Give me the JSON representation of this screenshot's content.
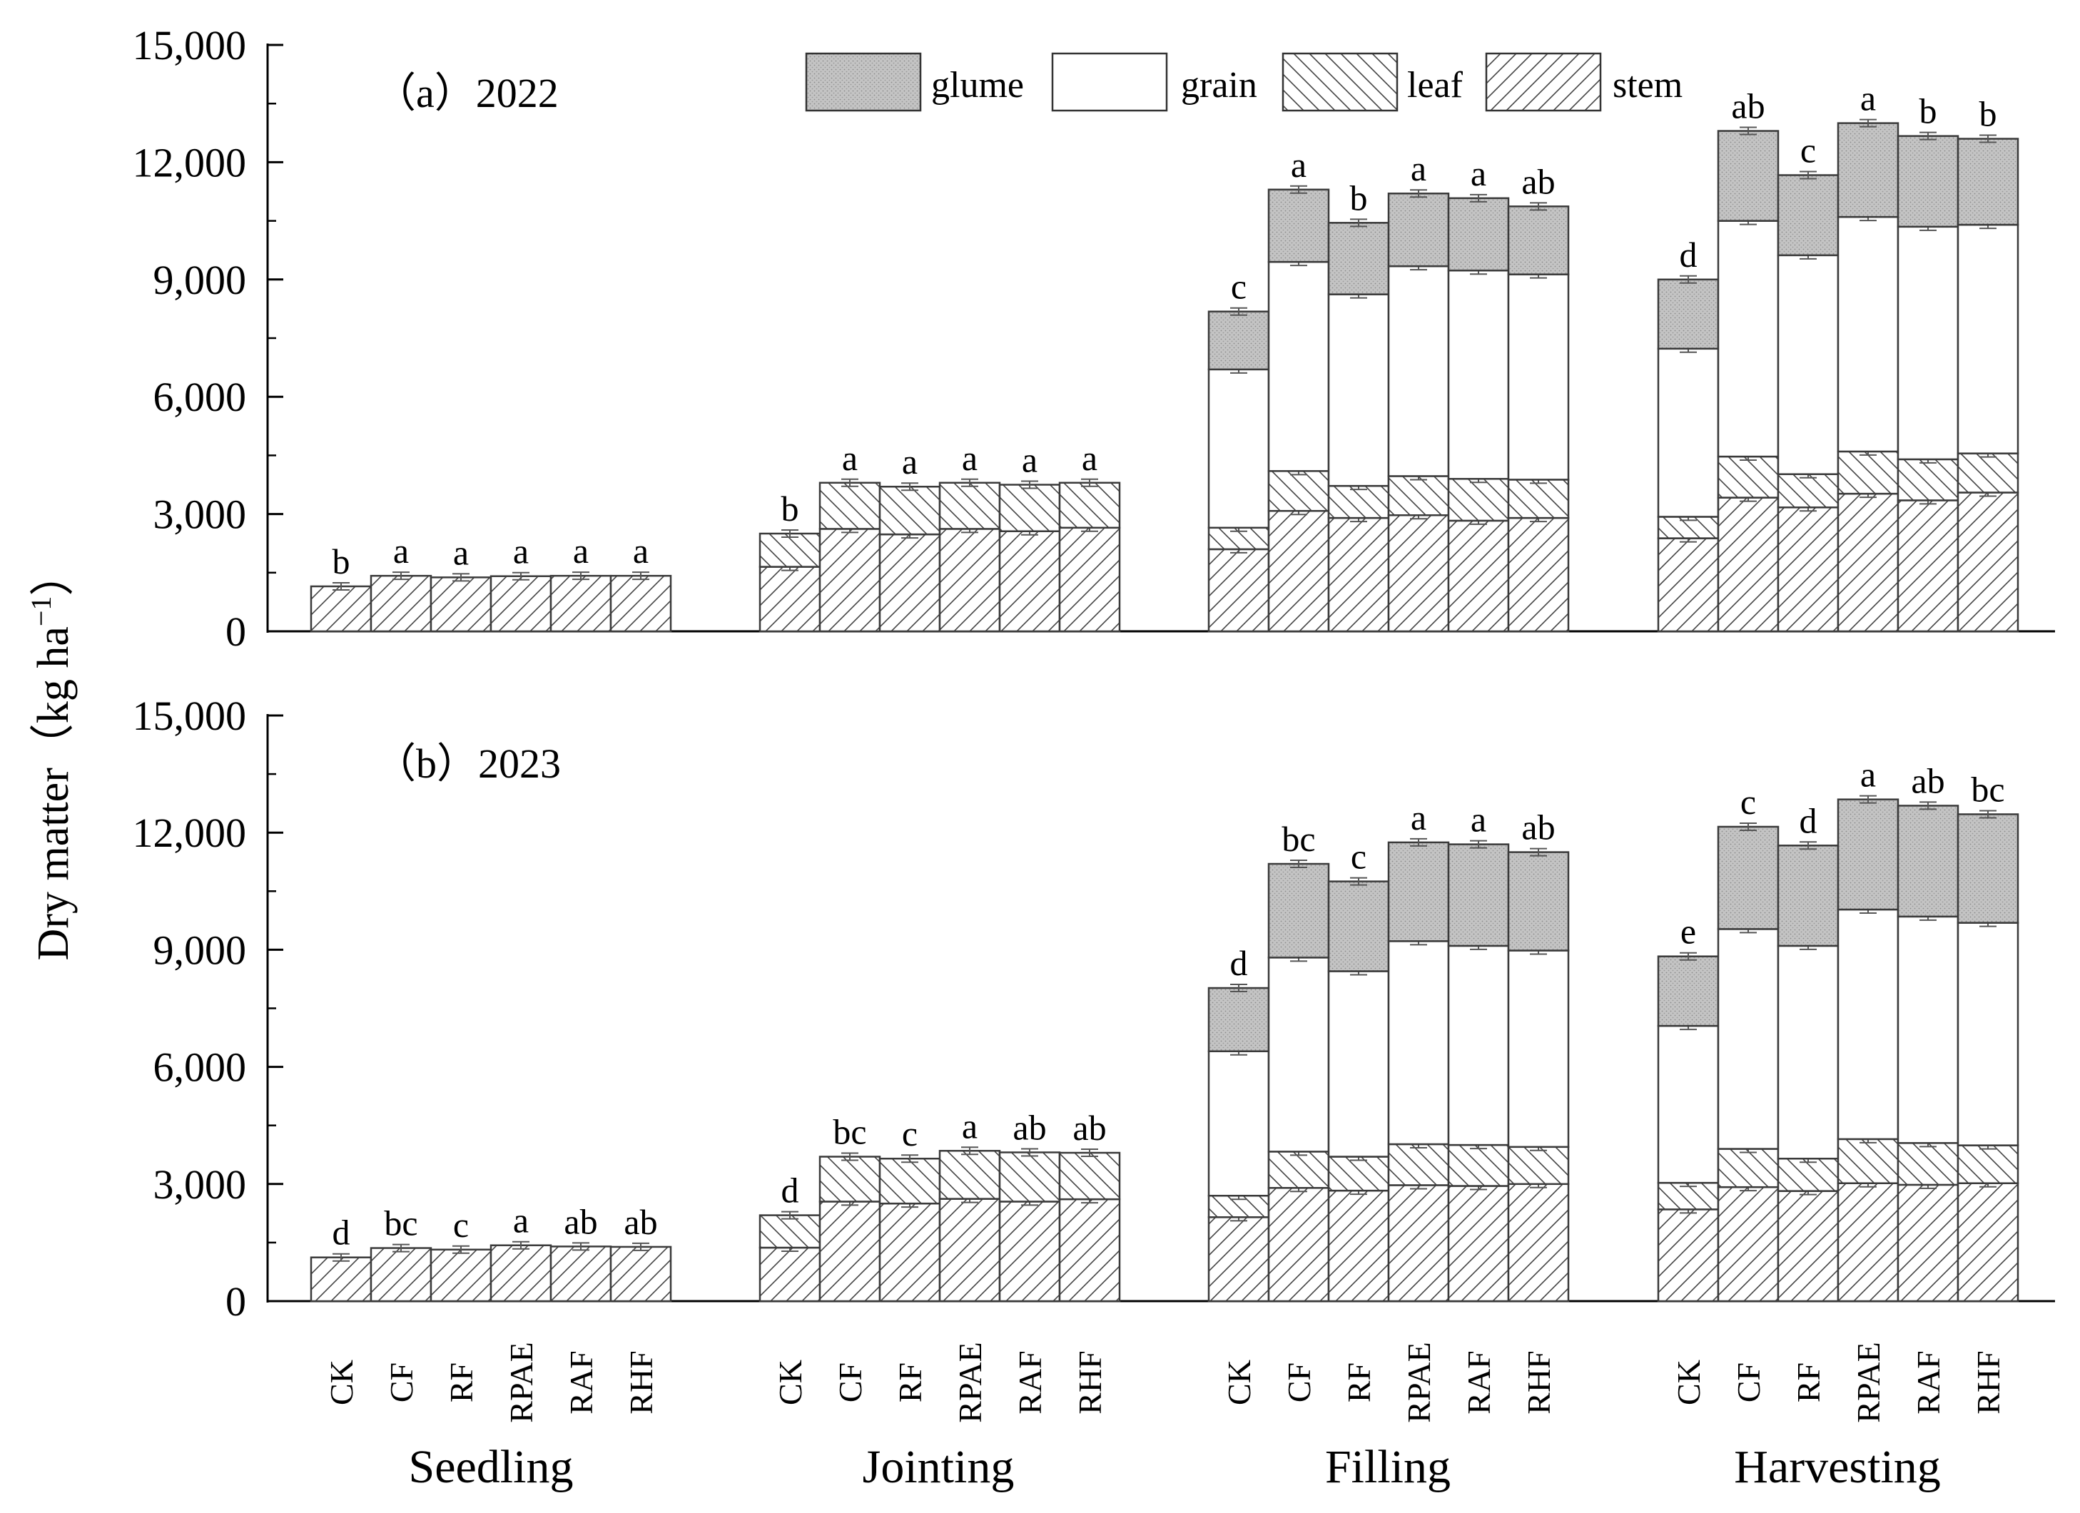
{
  "ylabel": "Dry matter",
  "ylabel_unit": "（kg ha",
  "ylabel_sup": "−1",
  "ylabel_close": "）",
  "treatments": [
    "CK",
    "CF",
    "RF",
    "RPAE",
    "RAF",
    "RHF"
  ],
  "stages": [
    "Seedling",
    "Jointing",
    "Filling",
    "Harvesting"
  ],
  "legend": [
    {
      "key": "glume",
      "label": "glume"
    },
    {
      "key": "grain",
      "label": "grain"
    },
    {
      "key": "leaf",
      "label": "leaf"
    },
    {
      "key": "stem",
      "label": "stem"
    }
  ],
  "colors": {
    "glume": "#c8c8c8",
    "grain": "#ffffff",
    "axis": "#000000",
    "bar_edge": "#3a3a3a"
  },
  "chart_data": [
    {
      "type": "bar",
      "stacked": true,
      "title": "（a）2022",
      "ylabel": "Dry matter（kg ha−1）",
      "ylim": [
        0,
        15000
      ],
      "yticks": [
        "0",
        "3,000",
        "6,000",
        "9,000",
        "12,000",
        "15,000"
      ],
      "groups": [
        {
          "stage": "Seedling",
          "bars": [
            {
              "treatment": "CK",
              "stem": 1150,
              "leaf": 0,
              "grain": 0,
              "glume": 0,
              "letter": "b"
            },
            {
              "treatment": "CF",
              "stem": 1420,
              "leaf": 0,
              "grain": 0,
              "glume": 0,
              "letter": "a"
            },
            {
              "treatment": "RF",
              "stem": 1380,
              "leaf": 0,
              "grain": 0,
              "glume": 0,
              "letter": "a"
            },
            {
              "treatment": "RPAE",
              "stem": 1410,
              "leaf": 0,
              "grain": 0,
              "glume": 0,
              "letter": "a"
            },
            {
              "treatment": "RAF",
              "stem": 1420,
              "leaf": 0,
              "grain": 0,
              "glume": 0,
              "letter": "a"
            },
            {
              "treatment": "RHF",
              "stem": 1420,
              "leaf": 0,
              "grain": 0,
              "glume": 0,
              "letter": "a"
            }
          ]
        },
        {
          "stage": "Jointing",
          "bars": [
            {
              "treatment": "CK",
              "stem": 1650,
              "leaf": 850,
              "grain": 0,
              "glume": 0,
              "letter": "b"
            },
            {
              "treatment": "CF",
              "stem": 2620,
              "leaf": 1180,
              "grain": 0,
              "glume": 0,
              "letter": "a"
            },
            {
              "treatment": "RF",
              "stem": 2480,
              "leaf": 1220,
              "grain": 0,
              "glume": 0,
              "letter": "a"
            },
            {
              "treatment": "RPAE",
              "stem": 2620,
              "leaf": 1180,
              "grain": 0,
              "glume": 0,
              "letter": "a"
            },
            {
              "treatment": "RAF",
              "stem": 2560,
              "leaf": 1190,
              "grain": 0,
              "glume": 0,
              "letter": "a"
            },
            {
              "treatment": "RHF",
              "stem": 2650,
              "leaf": 1150,
              "grain": 0,
              "glume": 0,
              "letter": "a"
            }
          ]
        },
        {
          "stage": "Filling",
          "bars": [
            {
              "treatment": "CK",
              "stem": 2100,
              "leaf": 550,
              "grain": 4050,
              "glume": 1480,
              "letter": "c"
            },
            {
              "treatment": "CF",
              "stem": 3080,
              "leaf": 1020,
              "grain": 5350,
              "glume": 1850,
              "letter": "a"
            },
            {
              "treatment": "RF",
              "stem": 2900,
              "leaf": 820,
              "grain": 4900,
              "glume": 1830,
              "letter": "b"
            },
            {
              "treatment": "RPAE",
              "stem": 2970,
              "leaf": 1000,
              "grain": 5370,
              "glume": 1860,
              "letter": "a"
            },
            {
              "treatment": "RAF",
              "stem": 2830,
              "leaf": 1070,
              "grain": 5330,
              "glume": 1850,
              "letter": "a"
            },
            {
              "treatment": "RHF",
              "stem": 2900,
              "leaf": 980,
              "grain": 5250,
              "glume": 1740,
              "letter": "ab"
            }
          ]
        },
        {
          "stage": "Harvesting",
          "bars": [
            {
              "treatment": "CK",
              "stem": 2380,
              "leaf": 550,
              "grain": 4300,
              "glume": 1770,
              "letter": "d"
            },
            {
              "treatment": "CF",
              "stem": 3420,
              "leaf": 1050,
              "grain": 6030,
              "glume": 2300,
              "letter": "ab"
            },
            {
              "treatment": "RF",
              "stem": 3170,
              "leaf": 850,
              "grain": 5600,
              "glume": 2050,
              "letter": "c"
            },
            {
              "treatment": "RPAE",
              "stem": 3520,
              "leaf": 1080,
              "grain": 6000,
              "glume": 2400,
              "letter": "a"
            },
            {
              "treatment": "RAF",
              "stem": 3350,
              "leaf": 1050,
              "grain": 5950,
              "glume": 2320,
              "letter": "b"
            },
            {
              "treatment": "RHF",
              "stem": 3550,
              "leaf": 1000,
              "grain": 5850,
              "glume": 2200,
              "letter": "b"
            }
          ]
        }
      ]
    },
    {
      "type": "bar",
      "stacked": true,
      "title": "（b）2023",
      "ylabel": "Dry matter（kg ha−1）",
      "ylim": [
        0,
        15000
      ],
      "yticks": [
        "0",
        "3,000",
        "6,000",
        "9,000",
        "12,000",
        "15,000"
      ],
      "groups": [
        {
          "stage": "Seedling",
          "bars": [
            {
              "treatment": "CK",
              "stem": 1120,
              "leaf": 0,
              "grain": 0,
              "glume": 0,
              "letter": "d"
            },
            {
              "treatment": "CF",
              "stem": 1360,
              "leaf": 0,
              "grain": 0,
              "glume": 0,
              "letter": "bc"
            },
            {
              "treatment": "RF",
              "stem": 1320,
              "leaf": 0,
              "grain": 0,
              "glume": 0,
              "letter": "c"
            },
            {
              "treatment": "RPAE",
              "stem": 1430,
              "leaf": 0,
              "grain": 0,
              "glume": 0,
              "letter": "a"
            },
            {
              "treatment": "RAF",
              "stem": 1400,
              "leaf": 0,
              "grain": 0,
              "glume": 0,
              "letter": "ab"
            },
            {
              "treatment": "RHF",
              "stem": 1390,
              "leaf": 0,
              "grain": 0,
              "glume": 0,
              "letter": "ab"
            }
          ]
        },
        {
          "stage": "Jointing",
          "bars": [
            {
              "treatment": "CK",
              "stem": 1370,
              "leaf": 830,
              "grain": 0,
              "glume": 0,
              "letter": "d"
            },
            {
              "treatment": "CF",
              "stem": 2550,
              "leaf": 1150,
              "grain": 0,
              "glume": 0,
              "letter": "bc"
            },
            {
              "treatment": "RF",
              "stem": 2500,
              "leaf": 1150,
              "grain": 0,
              "glume": 0,
              "letter": "c"
            },
            {
              "treatment": "RPAE",
              "stem": 2620,
              "leaf": 1230,
              "grain": 0,
              "glume": 0,
              "letter": "a"
            },
            {
              "treatment": "RAF",
              "stem": 2550,
              "leaf": 1260,
              "grain": 0,
              "glume": 0,
              "letter": "ab"
            },
            {
              "treatment": "RHF",
              "stem": 2610,
              "leaf": 1190,
              "grain": 0,
              "glume": 0,
              "letter": "ab"
            }
          ]
        },
        {
          "stage": "Filling",
          "bars": [
            {
              "treatment": "CK",
              "stem": 2150,
              "leaf": 550,
              "grain": 3700,
              "glume": 1620,
              "letter": "d"
            },
            {
              "treatment": "CF",
              "stem": 2900,
              "leaf": 930,
              "grain": 4970,
              "glume": 2400,
              "letter": "bc"
            },
            {
              "treatment": "RF",
              "stem": 2830,
              "leaf": 870,
              "grain": 4750,
              "glume": 2300,
              "letter": "c"
            },
            {
              "treatment": "RPAE",
              "stem": 2970,
              "leaf": 1050,
              "grain": 5200,
              "glume": 2530,
              "letter": "a"
            },
            {
              "treatment": "RAF",
              "stem": 2950,
              "leaf": 1050,
              "grain": 5100,
              "glume": 2600,
              "letter": "a"
            },
            {
              "treatment": "RHF",
              "stem": 3000,
              "leaf": 950,
              "grain": 5030,
              "glume": 2520,
              "letter": "ab"
            }
          ]
        },
        {
          "stage": "Harvesting",
          "bars": [
            {
              "treatment": "CK",
              "stem": 2350,
              "leaf": 680,
              "grain": 4020,
              "glume": 1780,
              "letter": "e"
            },
            {
              "treatment": "CF",
              "stem": 2920,
              "leaf": 980,
              "grain": 5630,
              "glume": 2620,
              "letter": "c"
            },
            {
              "treatment": "RF",
              "stem": 2820,
              "leaf": 830,
              "grain": 5450,
              "glume": 2570,
              "letter": "d"
            },
            {
              "treatment": "RPAE",
              "stem": 3020,
              "leaf": 1130,
              "grain": 5880,
              "glume": 2820,
              "letter": "a"
            },
            {
              "treatment": "RAF",
              "stem": 2980,
              "leaf": 1070,
              "grain": 5800,
              "glume": 2840,
              "letter": "ab"
            },
            {
              "treatment": "RHF",
              "stem": 3020,
              "leaf": 970,
              "grain": 5700,
              "glume": 2780,
              "letter": "bc"
            }
          ]
        }
      ]
    }
  ]
}
